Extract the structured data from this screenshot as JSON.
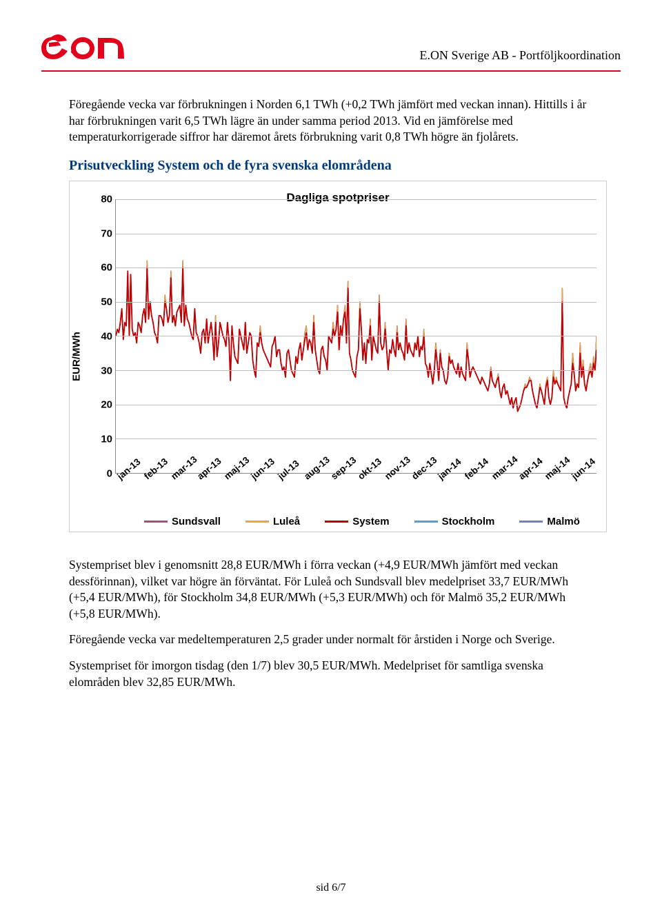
{
  "header": {
    "org_line": "E.ON Sverige AB - Portföljkoordination",
    "hr_color": "#e2001a"
  },
  "logo": {
    "brand_red": "#e2001a",
    "text": "e·on"
  },
  "body": {
    "p1": "Föregående vecka var förbrukningen i Norden 6,1 TWh (+0,2 TWh jämfört med veckan innan). Hittills i år har förbrukningen varit 6,5 TWh lägre än under samma period 2013. Vid en jämförelse med temperaturkorrigerade siffror har däremot årets förbrukning varit 0,8 TWh högre än fjolårets.",
    "section_title": "Prisutveckling System och de fyra svenska elområdena",
    "p2": "Systempriset blev i genomsnitt 28,8 EUR/MWh i förra veckan (+4,9 EUR/MWh jämfört med veckan dessförinnan), vilket var högre än förväntat. För Luleå och Sundsvall blev medelpriset 33,7 EUR/MWh (+5,4 EUR/MWh), för Stockholm 34,8 EUR/MWh (+5,3 EUR/MWh) och för Malmö 35,2 EUR/MWh (+5,8 EUR/MWh).",
    "p3": "Föregående vecka var medeltemperaturen 2,5 grader under normalt för årstiden i Norge och Sverige.",
    "p4": "Systempriset för imorgon tisdag (den 1/7) blev 30,5 EUR/MWh. Medelpriset för samtliga svenska elområden blev 32,85 EUR/MWh."
  },
  "chart": {
    "type": "line",
    "title": "Dagliga spotpriser",
    "y_axis_label": "EUR/MWh",
    "ylim": [
      0,
      80
    ],
    "ytick_step": 10,
    "y_ticks": [
      0,
      10,
      20,
      30,
      40,
      50,
      60,
      70,
      80
    ],
    "x_ticks": [
      "jan-13",
      "feb-13",
      "mar-13",
      "apr-13",
      "maj-13",
      "jun-13",
      "jul-13",
      "aug-13",
      "sep-13",
      "okt-13",
      "nov-13",
      "dec-13",
      "jan-14",
      "feb-14",
      "mar-14",
      "apr-14",
      "maj-14",
      "jun-14"
    ],
    "grid_color": "#bfbfbf",
    "axis_color": "#888888",
    "background_color": "#ffffff",
    "line_width": 1.4,
    "series": [
      {
        "name": "Sundsvall",
        "color": "#a64d79"
      },
      {
        "name": "Luleå",
        "color": "#f1a33c"
      },
      {
        "name": "System",
        "color": "#c00000"
      },
      {
        "name": "Stockholm",
        "color": "#5b9bd5"
      },
      {
        "name": "Malmö",
        "color": "#6f7fbf"
      }
    ],
    "data_area": [
      40,
      42,
      41,
      44,
      48,
      39,
      44,
      43,
      59,
      40,
      58,
      42,
      40,
      41,
      38,
      44,
      43,
      41,
      46,
      48,
      44,
      62,
      45,
      50,
      46,
      44,
      41,
      40,
      38,
      46,
      46,
      45,
      43,
      52,
      48,
      44,
      46,
      59,
      44,
      46,
      43,
      47,
      48,
      49,
      44,
      62,
      43,
      49,
      45,
      44,
      42,
      40,
      39,
      48,
      41,
      40,
      38,
      35,
      41,
      42,
      38,
      45,
      38,
      41,
      44,
      40,
      33,
      46,
      34,
      38,
      44,
      42,
      40,
      39,
      37,
      44,
      39,
      27,
      43,
      38,
      34,
      33,
      32,
      42,
      40,
      38,
      36,
      44,
      35,
      38,
      41,
      40,
      33,
      30,
      28,
      38,
      37,
      43,
      38,
      36,
      35,
      34,
      33,
      32,
      31,
      37,
      38,
      40,
      34,
      36,
      36,
      32,
      30,
      31,
      28,
      35,
      36,
      33,
      30,
      29,
      28,
      34,
      32,
      36,
      38,
      33,
      36,
      41,
      43,
      36,
      39,
      38,
      35,
      46,
      36,
      33,
      30,
      29,
      36,
      37,
      34,
      33,
      30,
      40,
      39,
      38,
      44,
      40,
      42,
      49,
      36,
      43,
      40,
      45,
      49,
      38,
      56,
      35,
      33,
      30,
      29,
      28,
      34,
      36,
      50,
      42,
      33,
      38,
      32,
      39,
      38,
      45,
      33,
      40,
      38,
      36,
      35,
      52,
      38,
      36,
      37,
      44,
      36,
      30,
      36,
      35,
      39,
      36,
      34,
      43,
      36,
      38,
      36,
      35,
      33,
      45,
      35,
      38,
      36,
      35,
      34,
      38,
      36,
      40,
      34,
      37,
      36,
      42,
      32,
      31,
      28,
      32,
      29,
      26,
      30,
      38,
      32,
      27,
      36,
      31,
      30,
      27,
      26,
      28,
      35,
      32,
      33,
      31,
      30,
      29,
      32,
      28,
      31,
      29,
      28,
      27,
      38,
      33,
      28,
      30,
      31,
      30,
      29,
      28,
      27,
      26,
      28,
      27,
      26,
      25,
      24,
      26,
      31,
      27,
      26,
      25,
      27,
      29,
      24,
      22,
      25,
      26,
      23,
      24,
      22,
      20,
      22,
      19,
      21,
      22,
      18,
      19,
      20,
      22,
      24,
      26,
      25,
      26,
      28,
      27,
      24,
      22,
      20,
      19,
      22,
      26,
      24,
      22,
      20,
      26,
      28,
      22,
      20,
      22,
      30,
      26,
      28,
      26,
      25,
      24,
      54,
      22,
      20,
      19,
      22,
      24,
      26,
      35,
      29,
      24,
      26,
      25,
      38,
      28,
      33,
      26,
      24,
      27,
      30,
      32,
      28,
      34,
      30,
      40
    ],
    "data_system": [
      40,
      42,
      41,
      44,
      48,
      39,
      44,
      43,
      59,
      40,
      58,
      42,
      40,
      41,
      38,
      44,
      43,
      41,
      46,
      48,
      44,
      60,
      45,
      50,
      46,
      44,
      41,
      40,
      38,
      46,
      46,
      45,
      43,
      50,
      48,
      44,
      46,
      57,
      44,
      46,
      43,
      47,
      48,
      49,
      44,
      60,
      43,
      49,
      45,
      44,
      42,
      40,
      39,
      48,
      41,
      40,
      38,
      35,
      41,
      42,
      38,
      45,
      38,
      41,
      44,
      40,
      33,
      44,
      34,
      38,
      44,
      42,
      40,
      39,
      37,
      44,
      39,
      27,
      43,
      38,
      34,
      33,
      32,
      42,
      40,
      38,
      36,
      44,
      35,
      38,
      41,
      40,
      33,
      30,
      28,
      38,
      37,
      41,
      38,
      36,
      35,
      34,
      33,
      32,
      31,
      37,
      38,
      40,
      34,
      36,
      36,
      32,
      30,
      31,
      28,
      35,
      36,
      33,
      30,
      29,
      28,
      34,
      32,
      36,
      38,
      33,
      36,
      39,
      41,
      36,
      39,
      38,
      35,
      44,
      36,
      33,
      30,
      29,
      36,
      37,
      34,
      33,
      30,
      40,
      39,
      38,
      42,
      40,
      42,
      47,
      36,
      43,
      40,
      45,
      47,
      38,
      54,
      35,
      33,
      30,
      29,
      28,
      34,
      36,
      48,
      42,
      33,
      38,
      32,
      39,
      38,
      43,
      33,
      40,
      38,
      36,
      35,
      50,
      38,
      36,
      37,
      42,
      36,
      30,
      36,
      35,
      39,
      36,
      34,
      41,
      36,
      38,
      36,
      35,
      33,
      43,
      35,
      38,
      36,
      35,
      34,
      38,
      36,
      40,
      34,
      37,
      36,
      40,
      32,
      31,
      28,
      32,
      29,
      26,
      30,
      36,
      32,
      27,
      35,
      31,
      30,
      27,
      26,
      28,
      34,
      32,
      33,
      31,
      30,
      29,
      32,
      28,
      31,
      29,
      28,
      27,
      36,
      33,
      28,
      30,
      31,
      30,
      29,
      28,
      27,
      26,
      28,
      27,
      26,
      25,
      24,
      26,
      30,
      27,
      26,
      25,
      27,
      28,
      24,
      22,
      25,
      26,
      23,
      24,
      22,
      20,
      22,
      19,
      21,
      22,
      18,
      19,
      20,
      22,
      24,
      25,
      25,
      26,
      27,
      27,
      24,
      22,
      20,
      19,
      22,
      25,
      24,
      22,
      20,
      25,
      27,
      22,
      20,
      22,
      28,
      26,
      27,
      26,
      25,
      24,
      50,
      22,
      20,
      19,
      22,
      24,
      26,
      32,
      29,
      24,
      26,
      25,
      35,
      28,
      31,
      26,
      24,
      27,
      29,
      30,
      28,
      32,
      30,
      36
    ]
  },
  "footer": {
    "page_label": "sid 6/7"
  }
}
